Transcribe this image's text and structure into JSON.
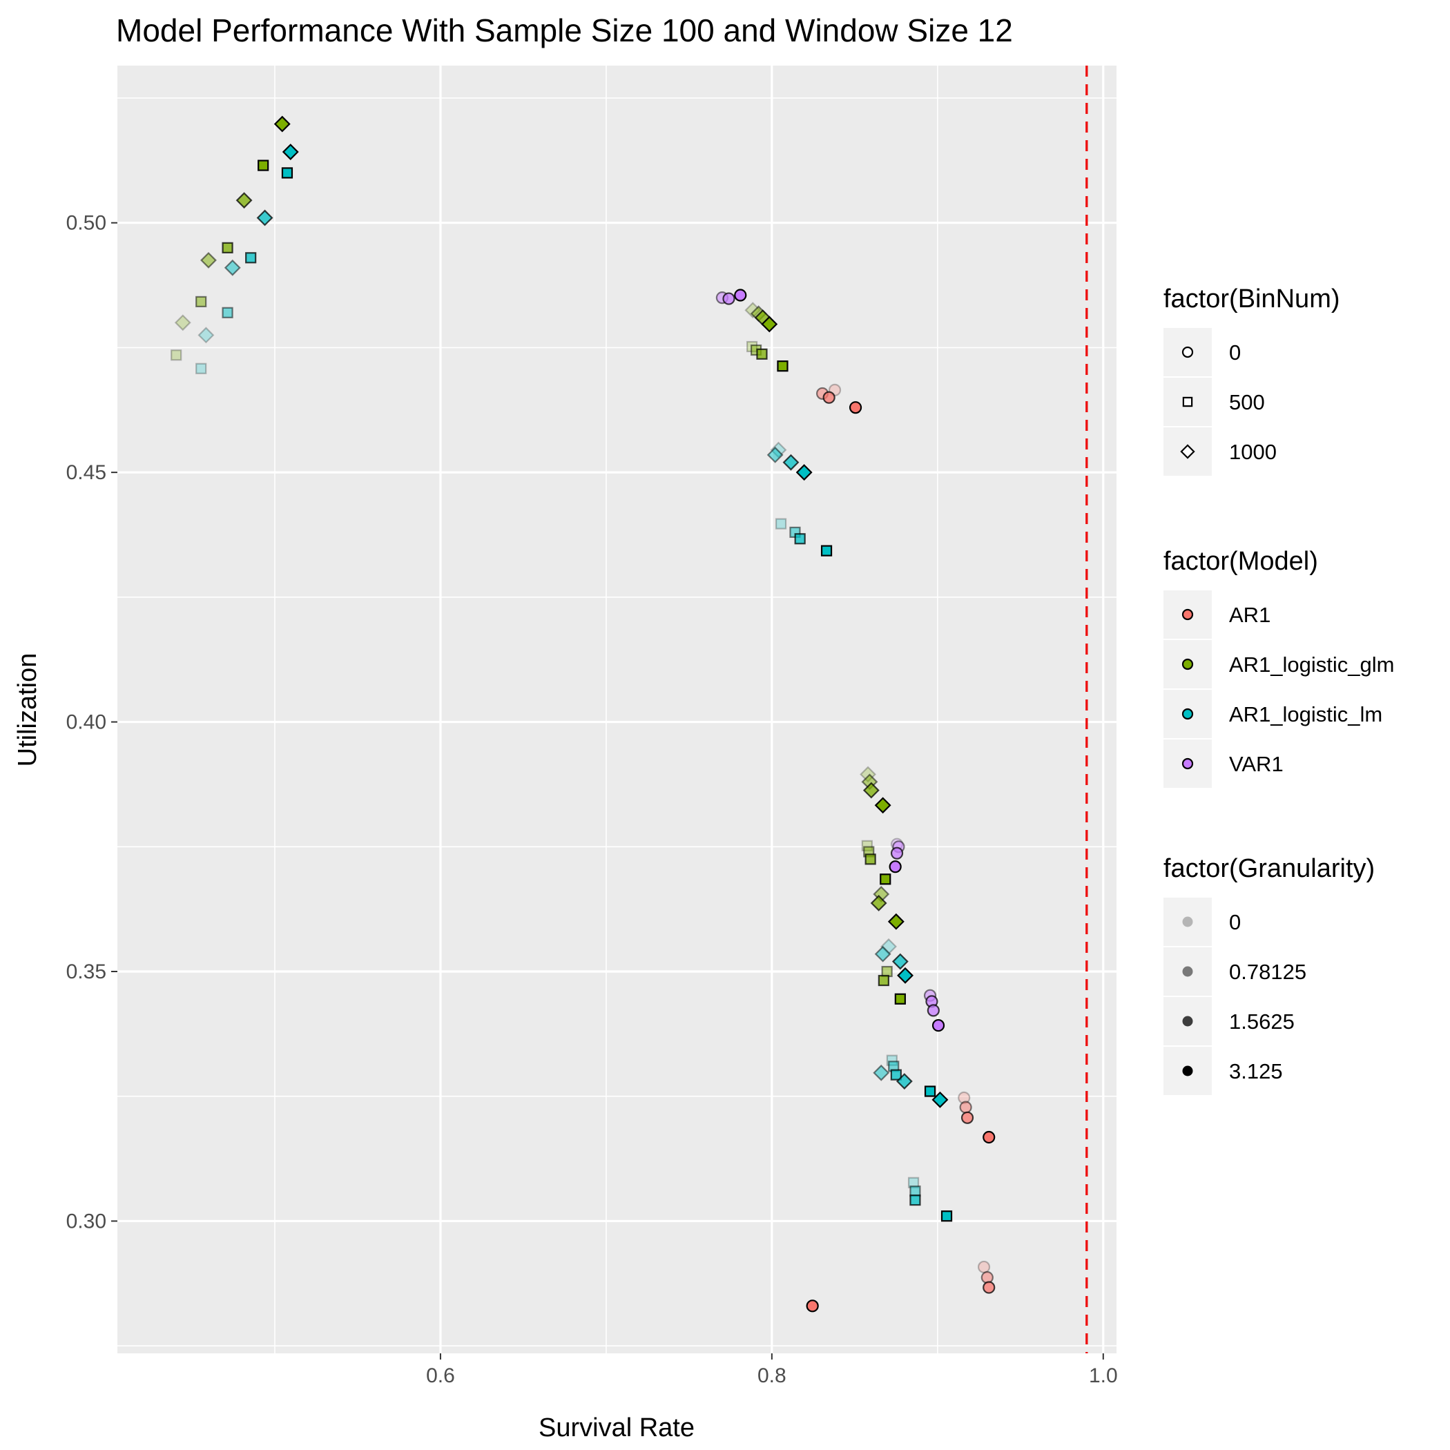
{
  "chart_data": {
    "type": "scatter",
    "title": "Model Performance With Sample Size 100 and Window Size 12",
    "xlabel": "Survival Rate",
    "ylabel": "Utilization",
    "xlim": [
      0.405,
      1.008
    ],
    "ylim": [
      0.2735,
      0.5315
    ],
    "x_ticks": [
      0.6,
      0.8,
      1.0
    ],
    "x_tick_labels": [
      "0.6",
      "0.8",
      "1.0"
    ],
    "y_ticks": [
      0.3,
      0.35,
      0.4,
      0.45,
      0.5
    ],
    "y_tick_labels": [
      "0.30",
      "0.35",
      "0.40",
      "0.45",
      "0.50"
    ],
    "reference_line": {
      "x": 0.99,
      "color": "#ee1111",
      "style": "dashed"
    },
    "grid": true,
    "legend_position": "right",
    "model_colors": {
      "AR1": "#F8766D",
      "AR1_logistic_glm": "#7CAE00",
      "AR1_logistic_lm": "#00BFC4",
      "VAR1": "#C77CFF"
    },
    "granularity_alpha": {
      "0": 0.25,
      "0.78125": 0.5,
      "1.5625": 0.75,
      "3.125": 1.0
    },
    "legends": [
      {
        "title": "factor(BinNum)",
        "kind": "shape",
        "items": [
          {
            "label": "0",
            "shape": "circle"
          },
          {
            "label": "500",
            "shape": "square"
          },
          {
            "label": "1000",
            "shape": "diamond"
          }
        ]
      },
      {
        "title": "factor(Model)",
        "kind": "color",
        "items": [
          {
            "label": "AR1",
            "model": "AR1"
          },
          {
            "label": "AR1_logistic_glm",
            "model": "AR1_logistic_glm"
          },
          {
            "label": "AR1_logistic_lm",
            "model": "AR1_logistic_lm"
          },
          {
            "label": "VAR1",
            "model": "VAR1"
          }
        ]
      },
      {
        "title": "factor(Granularity)",
        "kind": "alpha",
        "items": [
          {
            "label": "0",
            "granularity": "0"
          },
          {
            "label": "0.78125",
            "granularity": "0.78125"
          },
          {
            "label": "1.5625",
            "granularity": "1.5625"
          },
          {
            "label": "3.125",
            "granularity": "3.125"
          }
        ]
      }
    ],
    "points": [
      {
        "x": 0.4405,
        "y": 0.4735,
        "model": "AR1_logistic_glm",
        "bin": "500",
        "gran": "0"
      },
      {
        "x": 0.4555,
        "y": 0.4842,
        "model": "AR1_logistic_glm",
        "bin": "500",
        "gran": "0.78125"
      },
      {
        "x": 0.4715,
        "y": 0.495,
        "model": "AR1_logistic_glm",
        "bin": "500",
        "gran": "1.5625"
      },
      {
        "x": 0.493,
        "y": 0.5115,
        "model": "AR1_logistic_glm",
        "bin": "500",
        "gran": "3.125"
      },
      {
        "x": 0.4445,
        "y": 0.48,
        "model": "AR1_logistic_glm",
        "bin": "1000",
        "gran": "0"
      },
      {
        "x": 0.46,
        "y": 0.4925,
        "model": "AR1_logistic_glm",
        "bin": "1000",
        "gran": "0.78125"
      },
      {
        "x": 0.4815,
        "y": 0.5045,
        "model": "AR1_logistic_glm",
        "bin": "1000",
        "gran": "1.5625"
      },
      {
        "x": 0.5045,
        "y": 0.5198,
        "model": "AR1_logistic_glm",
        "bin": "1000",
        "gran": "3.125"
      },
      {
        "x": 0.4555,
        "y": 0.4708,
        "model": "AR1_logistic_lm",
        "bin": "500",
        "gran": "0"
      },
      {
        "x": 0.4715,
        "y": 0.482,
        "model": "AR1_logistic_lm",
        "bin": "500",
        "gran": "0.78125"
      },
      {
        "x": 0.4855,
        "y": 0.493,
        "model": "AR1_logistic_lm",
        "bin": "500",
        "gran": "1.5625"
      },
      {
        "x": 0.5075,
        "y": 0.51,
        "model": "AR1_logistic_lm",
        "bin": "500",
        "gran": "3.125"
      },
      {
        "x": 0.4585,
        "y": 0.4775,
        "model": "AR1_logistic_lm",
        "bin": "1000",
        "gran": "0"
      },
      {
        "x": 0.4745,
        "y": 0.491,
        "model": "AR1_logistic_lm",
        "bin": "1000",
        "gran": "0.78125"
      },
      {
        "x": 0.494,
        "y": 0.501,
        "model": "AR1_logistic_lm",
        "bin": "1000",
        "gran": "1.5625"
      },
      {
        "x": 0.5095,
        "y": 0.5142,
        "model": "AR1_logistic_lm",
        "bin": "1000",
        "gran": "3.125"
      },
      {
        "x": 0.77,
        "y": 0.485,
        "model": "VAR1",
        "bin": "0",
        "gran": "0.78125"
      },
      {
        "x": 0.774,
        "y": 0.4848,
        "model": "VAR1",
        "bin": "0",
        "gran": "1.5625"
      },
      {
        "x": 0.781,
        "y": 0.4855,
        "model": "VAR1",
        "bin": "0",
        "gran": "3.125"
      },
      {
        "x": 0.7885,
        "y": 0.4825,
        "model": "AR1_logistic_glm",
        "bin": "1000",
        "gran": "0"
      },
      {
        "x": 0.792,
        "y": 0.4818,
        "model": "AR1_logistic_glm",
        "bin": "1000",
        "gran": "0.78125"
      },
      {
        "x": 0.7945,
        "y": 0.481,
        "model": "AR1_logistic_glm",
        "bin": "1000",
        "gran": "1.5625"
      },
      {
        "x": 0.7985,
        "y": 0.4797,
        "model": "AR1_logistic_glm",
        "bin": "1000",
        "gran": "3.125"
      },
      {
        "x": 0.788,
        "y": 0.4752,
        "model": "AR1_logistic_glm",
        "bin": "500",
        "gran": "0"
      },
      {
        "x": 0.7905,
        "y": 0.4745,
        "model": "AR1_logistic_glm",
        "bin": "500",
        "gran": "0.78125"
      },
      {
        "x": 0.794,
        "y": 0.4737,
        "model": "AR1_logistic_glm",
        "bin": "500",
        "gran": "1.5625"
      },
      {
        "x": 0.8065,
        "y": 0.4713,
        "model": "AR1_logistic_glm",
        "bin": "500",
        "gran": "3.125"
      },
      {
        "x": 0.838,
        "y": 0.4665,
        "model": "AR1",
        "bin": "0",
        "gran": "0"
      },
      {
        "x": 0.8305,
        "y": 0.4658,
        "model": "AR1",
        "bin": "0",
        "gran": "0.78125"
      },
      {
        "x": 0.8345,
        "y": 0.465,
        "model": "AR1",
        "bin": "0",
        "gran": "1.5625"
      },
      {
        "x": 0.8505,
        "y": 0.463,
        "model": "AR1",
        "bin": "0",
        "gran": "3.125"
      },
      {
        "x": 0.804,
        "y": 0.4545,
        "model": "AR1_logistic_lm",
        "bin": "1000",
        "gran": "0"
      },
      {
        "x": 0.802,
        "y": 0.4535,
        "model": "AR1_logistic_lm",
        "bin": "1000",
        "gran": "0.78125"
      },
      {
        "x": 0.8115,
        "y": 0.452,
        "model": "AR1_logistic_lm",
        "bin": "1000",
        "gran": "1.5625"
      },
      {
        "x": 0.8195,
        "y": 0.45,
        "model": "AR1_logistic_lm",
        "bin": "1000",
        "gran": "3.125"
      },
      {
        "x": 0.8055,
        "y": 0.4397,
        "model": "AR1_logistic_lm",
        "bin": "500",
        "gran": "0"
      },
      {
        "x": 0.814,
        "y": 0.438,
        "model": "AR1_logistic_lm",
        "bin": "500",
        "gran": "0.78125"
      },
      {
        "x": 0.817,
        "y": 0.4367,
        "model": "AR1_logistic_lm",
        "bin": "500",
        "gran": "1.5625"
      },
      {
        "x": 0.833,
        "y": 0.4343,
        "model": "AR1_logistic_lm",
        "bin": "500",
        "gran": "3.125"
      },
      {
        "x": 0.858,
        "y": 0.3895,
        "model": "AR1_logistic_glm",
        "bin": "1000",
        "gran": "0"
      },
      {
        "x": 0.859,
        "y": 0.388,
        "model": "AR1_logistic_glm",
        "bin": "1000",
        "gran": "0.78125"
      },
      {
        "x": 0.86,
        "y": 0.3863,
        "model": "AR1_logistic_glm",
        "bin": "1000",
        "gran": "1.5625"
      },
      {
        "x": 0.867,
        "y": 0.3833,
        "model": "AR1_logistic_glm",
        "bin": "1000",
        "gran": "3.125"
      },
      {
        "x": 0.8575,
        "y": 0.3752,
        "model": "AR1_logistic_glm",
        "bin": "500",
        "gran": "0"
      },
      {
        "x": 0.8585,
        "y": 0.374,
        "model": "AR1_logistic_glm",
        "bin": "500",
        "gran": "0.78125"
      },
      {
        "x": 0.8595,
        "y": 0.3725,
        "model": "AR1_logistic_glm",
        "bin": "500",
        "gran": "1.5625"
      },
      {
        "x": 0.8685,
        "y": 0.3685,
        "model": "AR1_logistic_glm",
        "bin": "500",
        "gran": "3.125"
      },
      {
        "x": 0.8755,
        "y": 0.3755,
        "model": "VAR1",
        "bin": "0",
        "gran": "0"
      },
      {
        "x": 0.8765,
        "y": 0.375,
        "model": "VAR1",
        "bin": "0",
        "gran": "0.78125"
      },
      {
        "x": 0.8755,
        "y": 0.3737,
        "model": "VAR1",
        "bin": "0",
        "gran": "1.5625"
      },
      {
        "x": 0.8745,
        "y": 0.371,
        "model": "VAR1",
        "bin": "0",
        "gran": "3.125"
      },
      {
        "x": 0.866,
        "y": 0.3655,
        "model": "AR1_logistic_glm",
        "bin": "1000",
        "gran": "0.78125"
      },
      {
        "x": 0.8645,
        "y": 0.3637,
        "model": "AR1_logistic_glm",
        "bin": "1000",
        "gran": "1.5625"
      },
      {
        "x": 0.875,
        "y": 0.36,
        "model": "AR1_logistic_glm",
        "bin": "1000",
        "gran": "3.125"
      },
      {
        "x": 0.8705,
        "y": 0.355,
        "model": "AR1_logistic_lm",
        "bin": "1000",
        "gran": "0"
      },
      {
        "x": 0.867,
        "y": 0.3535,
        "model": "AR1_logistic_lm",
        "bin": "1000",
        "gran": "0.78125"
      },
      {
        "x": 0.8775,
        "y": 0.352,
        "model": "AR1_logistic_lm",
        "bin": "1000",
        "gran": "1.5625"
      },
      {
        "x": 0.8805,
        "y": 0.3492,
        "model": "AR1_logistic_lm",
        "bin": "1000",
        "gran": "3.125"
      },
      {
        "x": 0.8695,
        "y": 0.35,
        "model": "AR1_logistic_glm",
        "bin": "500",
        "gran": "0.78125"
      },
      {
        "x": 0.8675,
        "y": 0.3482,
        "model": "AR1_logistic_glm",
        "bin": "500",
        "gran": "1.5625"
      },
      {
        "x": 0.8775,
        "y": 0.3445,
        "model": "AR1_logistic_glm",
        "bin": "500",
        "gran": "3.125"
      },
      {
        "x": 0.8955,
        "y": 0.3452,
        "model": "VAR1",
        "bin": "0",
        "gran": "0.78125"
      },
      {
        "x": 0.8965,
        "y": 0.344,
        "model": "VAR1",
        "bin": "0",
        "gran": "1.5625"
      },
      {
        "x": 0.8975,
        "y": 0.3422,
        "model": "VAR1",
        "bin": "0",
        "gran": "1.5625"
      },
      {
        "x": 0.9005,
        "y": 0.3392,
        "model": "VAR1",
        "bin": "0",
        "gran": "3.125"
      },
      {
        "x": 0.8725,
        "y": 0.3322,
        "model": "AR1_logistic_lm",
        "bin": "500",
        "gran": "0"
      },
      {
        "x": 0.8735,
        "y": 0.331,
        "model": "AR1_logistic_lm",
        "bin": "500",
        "gran": "0.78125"
      },
      {
        "x": 0.875,
        "y": 0.3293,
        "model": "AR1_logistic_lm",
        "bin": "500",
        "gran": "1.5625"
      },
      {
        "x": 0.8955,
        "y": 0.326,
        "model": "AR1_logistic_lm",
        "bin": "500",
        "gran": "3.125"
      },
      {
        "x": 0.866,
        "y": 0.3297,
        "model": "AR1_logistic_lm",
        "bin": "1000",
        "gran": "0.78125"
      },
      {
        "x": 0.88,
        "y": 0.328,
        "model": "AR1_logistic_lm",
        "bin": "1000",
        "gran": "1.5625"
      },
      {
        "x": 0.9015,
        "y": 0.3243,
        "model": "AR1_logistic_lm",
        "bin": "1000",
        "gran": "3.125"
      },
      {
        "x": 0.916,
        "y": 0.3247,
        "model": "AR1",
        "bin": "0",
        "gran": "0"
      },
      {
        "x": 0.917,
        "y": 0.3228,
        "model": "AR1",
        "bin": "0",
        "gran": "0.78125"
      },
      {
        "x": 0.918,
        "y": 0.3207,
        "model": "AR1",
        "bin": "0",
        "gran": "1.5625"
      },
      {
        "x": 0.931,
        "y": 0.3168,
        "model": "AR1",
        "bin": "0",
        "gran": "3.125"
      },
      {
        "x": 0.8855,
        "y": 0.3077,
        "model": "AR1_logistic_lm",
        "bin": "500",
        "gran": "0"
      },
      {
        "x": 0.8865,
        "y": 0.306,
        "model": "AR1_logistic_lm",
        "bin": "500",
        "gran": "0.78125"
      },
      {
        "x": 0.8865,
        "y": 0.3042,
        "model": "AR1_logistic_lm",
        "bin": "500",
        "gran": "1.5625"
      },
      {
        "x": 0.9055,
        "y": 0.301,
        "model": "AR1_logistic_lm",
        "bin": "500",
        "gran": "3.125"
      },
      {
        "x": 0.928,
        "y": 0.2908,
        "model": "AR1",
        "bin": "0",
        "gran": "0"
      },
      {
        "x": 0.93,
        "y": 0.2887,
        "model": "AR1",
        "bin": "0",
        "gran": "0.78125"
      },
      {
        "x": 0.931,
        "y": 0.2867,
        "model": "AR1",
        "bin": "0",
        "gran": "1.5625"
      },
      {
        "x": 0.8245,
        "y": 0.283,
        "model": "AR1",
        "bin": "0",
        "gran": "3.125"
      }
    ]
  }
}
